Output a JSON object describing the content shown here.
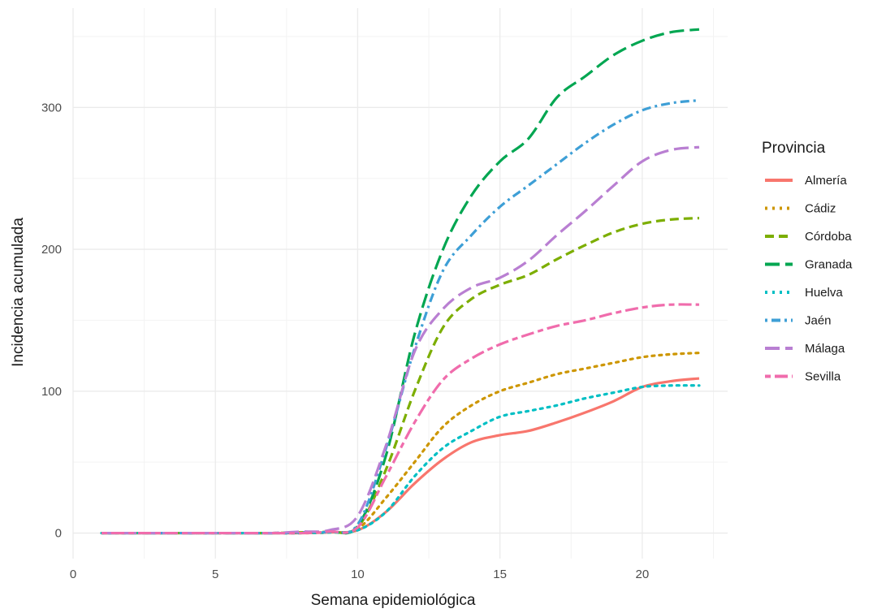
{
  "chart_data": {
    "type": "line",
    "title": "",
    "xlabel": "Semana epidemiológica",
    "ylabel": "Incidencia acumulada",
    "xlim": [
      0,
      23
    ],
    "ylim": [
      -18,
      370
    ],
    "x_ticks": [
      0,
      5,
      10,
      15,
      20
    ],
    "y_ticks": [
      0,
      100,
      200,
      300
    ],
    "grid": true,
    "legend": {
      "title": "Provincia",
      "placement": "right"
    },
    "x": [
      1,
      2,
      3,
      4,
      5,
      6,
      7,
      8,
      9,
      10,
      11,
      12,
      13,
      14,
      15,
      16,
      17,
      18,
      19,
      20,
      21,
      22
    ],
    "series": [
      {
        "name": "Almería",
        "color": "#F8766D",
        "dash": "solid",
        "values": [
          0,
          0,
          0,
          0,
          0,
          0,
          0,
          0,
          0.5,
          2,
          15,
          35,
          52,
          64,
          69,
          72,
          78,
          85,
          93,
          103,
          107,
          109
        ]
      },
      {
        "name": "Cádiz",
        "color": "#CD9600",
        "dash": "dotted",
        "values": [
          0,
          0,
          0,
          0,
          0,
          0,
          0,
          0,
          0.5,
          3,
          25,
          50,
          75,
          90,
          100,
          106,
          112,
          116,
          120,
          124,
          126,
          127
        ]
      },
      {
        "name": "Córdoba",
        "color": "#7CAE00",
        "dash": "dashed",
        "values": [
          0,
          0,
          0,
          0,
          0,
          0,
          0,
          0.5,
          1,
          4,
          45,
          100,
          145,
          165,
          175,
          182,
          193,
          203,
          212,
          218,
          221,
          222
        ]
      },
      {
        "name": "Granada",
        "color": "#00A651",
        "dash": "longdash",
        "values": [
          0,
          0,
          0,
          0,
          0,
          0,
          0,
          0.5,
          1,
          5,
          55,
          140,
          200,
          238,
          262,
          278,
          307,
          322,
          337,
          347,
          353,
          355
        ]
      },
      {
        "name": "Huelva",
        "color": "#00BFC4",
        "dash": "dotted",
        "values": [
          0,
          0,
          0,
          0,
          0,
          0,
          0,
          0,
          0.5,
          2,
          15,
          40,
          60,
          72,
          82,
          86,
          90,
          95,
          99,
          103,
          104,
          104
        ]
      },
      {
        "name": "Jaén",
        "color": "#3E9FD6",
        "dash": "dotdash",
        "values": [
          0,
          0,
          0,
          0,
          0,
          0,
          0,
          0.5,
          1,
          6,
          60,
          130,
          185,
          210,
          230,
          245,
          260,
          275,
          288,
          298,
          303,
          305
        ]
      },
      {
        "name": "Málaga",
        "color": "#B97FD2",
        "dash": "longdash",
        "values": [
          0,
          0,
          0,
          0,
          0,
          0,
          0,
          1,
          2,
          12,
          62,
          128,
          158,
          173,
          180,
          192,
          210,
          227,
          245,
          262,
          270,
          272
        ]
      },
      {
        "name": "Sevilla",
        "color": "#F06CAC",
        "dash": "twodash",
        "values": [
          0,
          0,
          0,
          0,
          0,
          0,
          0,
          0,
          1,
          4,
          40,
          78,
          108,
          123,
          133,
          140,
          146,
          150,
          155,
          159,
          161,
          161
        ]
      }
    ]
  }
}
